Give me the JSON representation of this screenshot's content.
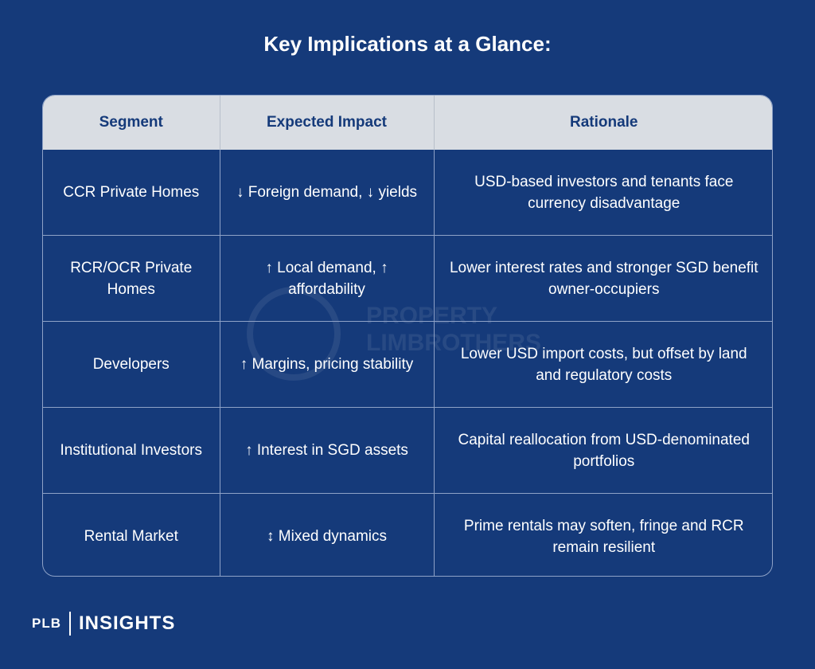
{
  "title": "Key Implications at a Glance:",
  "table": {
    "headers": [
      "Segment",
      "Expected Impact",
      "Rationale"
    ],
    "rows": [
      {
        "segment": "CCR Private Homes",
        "impact": "↓ Foreign demand, ↓ yields",
        "rationale": "USD-based investors and tenants face currency disadvantage"
      },
      {
        "segment": "RCR/OCR Private Homes",
        "impact": "↑ Local demand, ↑ affordability",
        "rationale": "Lower interest rates and stronger SGD benefit owner-occupiers"
      },
      {
        "segment": "Developers",
        "impact": "↑ Margins, pricing stability",
        "rationale": "Lower USD import costs, but offset by land and regulatory costs"
      },
      {
        "segment": "Institutional Investors",
        "impact": "↑ Interest in SGD assets",
        "rationale": "Capital reallocation from USD-denominated portfolios"
      },
      {
        "segment": "Rental Market",
        "impact": "↕ Mixed dynamics",
        "rationale": "Prime rentals may soften, fringe and RCR remain resilient"
      }
    ]
  },
  "watermark": {
    "line1": "PROPERTY",
    "line2": "LIMBROTHERS"
  },
  "footer": {
    "plb": "PLB",
    "insights": "INSIGHTS"
  },
  "colors": {
    "background": "#153a7a",
    "header_bg": "#d9dde3",
    "header_text": "#153a7a",
    "border": "#8ea2c7"
  }
}
